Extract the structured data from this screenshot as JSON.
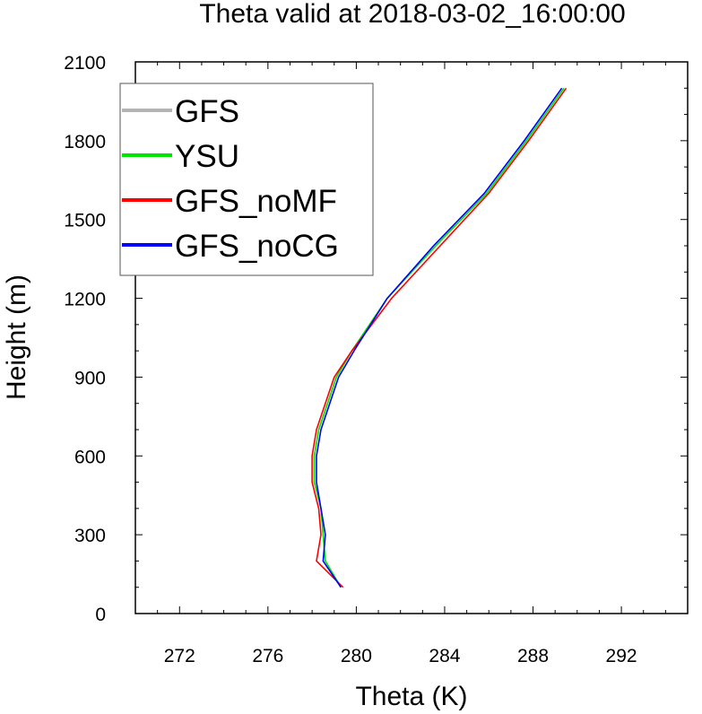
{
  "chart_data": {
    "type": "line",
    "title": "Theta valid at 2018-03-02_16:00:00",
    "xlabel": "Theta (K)",
    "ylabel": "Height (m)",
    "xlim": [
      270,
      295
    ],
    "ylim": [
      0,
      2100
    ],
    "xticks": [
      272,
      276,
      280,
      284,
      288,
      292
    ],
    "yticks": [
      0,
      300,
      600,
      900,
      1200,
      1500,
      1800,
      2100
    ],
    "legend_position": "top-left",
    "series": [
      {
        "name": "GFS",
        "color": "#b4b4b4",
        "x": [
          279.3,
          278.6,
          278.5,
          278.4,
          278.1,
          278.1,
          278.3,
          278.7,
          279.1,
          279.8,
          281.4,
          283.6,
          285.9,
          287.7,
          289.4
        ],
        "y": [
          100,
          200,
          300,
          400,
          500,
          600,
          700,
          800,
          900,
          1000,
          1200,
          1400,
          1600,
          1800,
          2000
        ]
      },
      {
        "name": "YSU",
        "color": "#00e600",
        "x": [
          279.3,
          278.6,
          278.5,
          278.4,
          278.1,
          278.1,
          278.3,
          278.7,
          279.1,
          279.8,
          281.4,
          283.6,
          285.9,
          287.7,
          289.4
        ],
        "y": [
          100,
          200,
          300,
          400,
          500,
          600,
          700,
          800,
          900,
          1000,
          1200,
          1400,
          1600,
          1800,
          2000
        ]
      },
      {
        "name": "GFS_noMF",
        "color": "#ff0000",
        "x": [
          279.4,
          278.2,
          278.4,
          278.3,
          278.0,
          278.0,
          278.2,
          278.6,
          279.0,
          279.8,
          281.6,
          283.8,
          286.0,
          287.8,
          289.5
        ],
        "y": [
          100,
          200,
          300,
          400,
          500,
          600,
          700,
          800,
          900,
          1000,
          1200,
          1400,
          1600,
          1800,
          2000
        ]
      },
      {
        "name": "GFS_noCG",
        "color": "#0000ff",
        "x": [
          279.3,
          278.5,
          278.6,
          278.4,
          278.2,
          278.2,
          278.4,
          278.8,
          279.2,
          279.9,
          281.4,
          283.5,
          285.8,
          287.6,
          289.3
        ],
        "y": [
          100,
          200,
          300,
          400,
          500,
          600,
          700,
          800,
          900,
          1000,
          1200,
          1400,
          1600,
          1800,
          2000
        ]
      }
    ]
  }
}
